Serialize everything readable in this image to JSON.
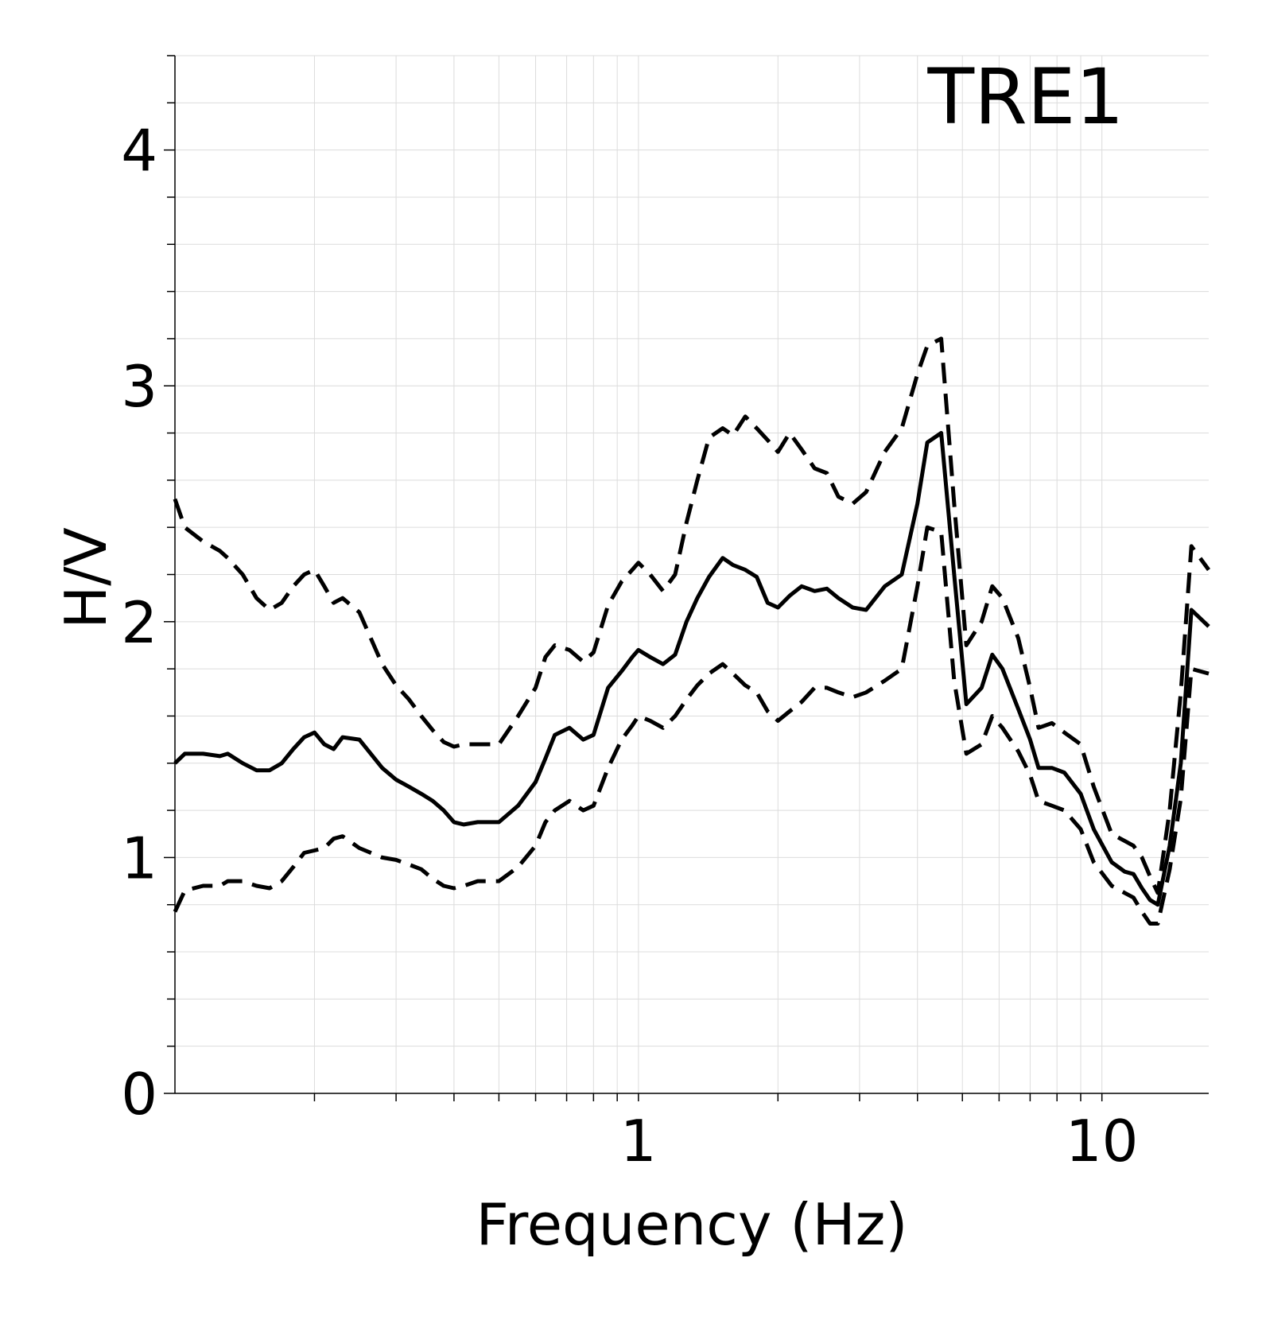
{
  "chart_data": {
    "type": "line",
    "title": "TRE1",
    "xlabel": "Frequency (Hz)",
    "ylabel": "H/V",
    "xscale": "log",
    "xlim": [
      0.1,
      17
    ],
    "ylim": [
      0,
      4.4
    ],
    "x_tick_labels": [
      "1",
      "10"
    ],
    "y_tick_labels": [
      "0",
      "1",
      "2",
      "3",
      "4"
    ],
    "grid": true,
    "series": [
      {
        "style": "solid",
        "color": "#000000",
        "x": [
          0.1,
          0.105,
          0.115,
          0.125,
          0.13,
          0.14,
          0.15,
          0.16,
          0.17,
          0.18,
          0.19,
          0.2,
          0.21,
          0.22,
          0.23,
          0.25,
          0.28,
          0.3,
          0.32,
          0.34,
          0.36,
          0.38,
          0.4,
          0.42,
          0.45,
          0.5,
          0.55,
          0.6,
          0.63,
          0.66,
          0.71,
          0.76,
          0.8,
          0.86,
          0.92,
          0.97,
          1.0,
          1.06,
          1.13,
          1.2,
          1.27,
          1.34,
          1.42,
          1.52,
          1.6,
          1.7,
          1.8,
          1.9,
          2.0,
          2.12,
          2.25,
          2.4,
          2.55,
          2.7,
          2.9,
          3.1,
          3.4,
          3.7,
          4.0,
          4.2,
          4.5,
          4.8,
          5.1,
          5.5,
          5.8,
          6.1,
          6.6,
          7.0,
          7.3,
          7.8,
          8.3,
          9.0,
          9.6,
          10.5,
          11.2,
          11.7,
          12.2,
          12.7,
          13.2,
          14.0,
          14.8,
          15.6,
          17.0
        ],
        "y": [
          1.4,
          1.44,
          1.44,
          1.43,
          1.44,
          1.4,
          1.37,
          1.37,
          1.4,
          1.46,
          1.51,
          1.53,
          1.48,
          1.46,
          1.51,
          1.5,
          1.38,
          1.33,
          1.3,
          1.27,
          1.24,
          1.2,
          1.15,
          1.14,
          1.15,
          1.15,
          1.22,
          1.32,
          1.42,
          1.52,
          1.55,
          1.5,
          1.52,
          1.72,
          1.79,
          1.85,
          1.88,
          1.85,
          1.82,
          1.86,
          2.0,
          2.1,
          2.19,
          2.27,
          2.24,
          2.22,
          2.19,
          2.08,
          2.06,
          2.11,
          2.15,
          2.13,
          2.14,
          2.1,
          2.06,
          2.05,
          2.15,
          2.2,
          2.5,
          2.76,
          2.8,
          2.2,
          1.65,
          1.72,
          1.86,
          1.8,
          1.63,
          1.5,
          1.38,
          1.38,
          1.36,
          1.27,
          1.12,
          0.98,
          0.94,
          0.93,
          0.87,
          0.82,
          0.8,
          1.05,
          1.4,
          2.05,
          1.98
        ]
      },
      {
        "style": "dashed",
        "color": "#000000",
        "x": [
          0.1,
          0.105,
          0.115,
          0.125,
          0.13,
          0.14,
          0.15,
          0.16,
          0.17,
          0.18,
          0.19,
          0.2,
          0.21,
          0.22,
          0.23,
          0.25,
          0.28,
          0.3,
          0.32,
          0.34,
          0.36,
          0.38,
          0.4,
          0.42,
          0.45,
          0.5,
          0.55,
          0.6,
          0.63,
          0.66,
          0.71,
          0.76,
          0.8,
          0.86,
          0.92,
          0.97,
          1.0,
          1.06,
          1.13,
          1.2,
          1.27,
          1.34,
          1.42,
          1.52,
          1.6,
          1.7,
          1.8,
          1.9,
          2.0,
          2.12,
          2.25,
          2.4,
          2.55,
          2.7,
          2.9,
          3.1,
          3.4,
          3.7,
          4.0,
          4.2,
          4.5,
          4.8,
          5.1,
          5.5,
          5.8,
          6.1,
          6.6,
          7.0,
          7.3,
          7.8,
          8.3,
          9.0,
          9.6,
          10.5,
          11.2,
          11.7,
          12.2,
          12.7,
          13.2,
          14.0,
          14.8,
          15.6,
          17.0
        ],
        "y": [
          2.52,
          2.4,
          2.34,
          2.3,
          2.27,
          2.2,
          2.1,
          2.05,
          2.08,
          2.15,
          2.2,
          2.22,
          2.15,
          2.08,
          2.1,
          2.04,
          1.82,
          1.73,
          1.67,
          1.6,
          1.54,
          1.49,
          1.47,
          1.48,
          1.48,
          1.48,
          1.6,
          1.72,
          1.85,
          1.9,
          1.88,
          1.83,
          1.87,
          2.07,
          2.17,
          2.22,
          2.25,
          2.2,
          2.13,
          2.2,
          2.42,
          2.6,
          2.78,
          2.82,
          2.79,
          2.87,
          2.82,
          2.77,
          2.72,
          2.8,
          2.73,
          2.65,
          2.63,
          2.53,
          2.5,
          2.55,
          2.72,
          2.82,
          3.05,
          3.17,
          3.2,
          2.5,
          1.9,
          2.0,
          2.15,
          2.1,
          1.93,
          1.72,
          1.55,
          1.57,
          1.53,
          1.48,
          1.3,
          1.1,
          1.07,
          1.05,
          1.0,
          0.92,
          0.85,
          1.2,
          1.7,
          2.32,
          2.22
        ]
      },
      {
        "style": "dashed",
        "color": "#000000",
        "x": [
          0.1,
          0.105,
          0.115,
          0.125,
          0.13,
          0.14,
          0.15,
          0.16,
          0.17,
          0.18,
          0.19,
          0.2,
          0.21,
          0.22,
          0.23,
          0.25,
          0.28,
          0.3,
          0.32,
          0.34,
          0.36,
          0.38,
          0.4,
          0.42,
          0.45,
          0.5,
          0.55,
          0.6,
          0.63,
          0.66,
          0.71,
          0.76,
          0.8,
          0.86,
          0.92,
          0.97,
          1.0,
          1.06,
          1.13,
          1.2,
          1.27,
          1.34,
          1.42,
          1.52,
          1.6,
          1.7,
          1.8,
          1.9,
          2.0,
          2.12,
          2.25,
          2.4,
          2.55,
          2.7,
          2.9,
          3.1,
          3.4,
          3.7,
          4.0,
          4.2,
          4.5,
          4.8,
          5.1,
          5.5,
          5.8,
          6.1,
          6.6,
          7.0,
          7.3,
          7.8,
          8.3,
          9.0,
          9.6,
          10.5,
          11.2,
          11.7,
          12.2,
          12.7,
          13.2,
          14.0,
          14.8,
          15.6,
          17.0
        ],
        "y": [
          0.77,
          0.86,
          0.88,
          0.88,
          0.9,
          0.9,
          0.88,
          0.87,
          0.9,
          0.96,
          1.02,
          1.03,
          1.04,
          1.08,
          1.09,
          1.04,
          1.0,
          0.99,
          0.97,
          0.95,
          0.91,
          0.88,
          0.87,
          0.88,
          0.9,
          0.9,
          0.96,
          1.05,
          1.15,
          1.2,
          1.24,
          1.2,
          1.22,
          1.38,
          1.5,
          1.56,
          1.6,
          1.58,
          1.55,
          1.6,
          1.67,
          1.73,
          1.78,
          1.82,
          1.78,
          1.73,
          1.7,
          1.62,
          1.58,
          1.62,
          1.66,
          1.72,
          1.72,
          1.7,
          1.68,
          1.7,
          1.75,
          1.8,
          2.15,
          2.4,
          2.38,
          1.75,
          1.44,
          1.48,
          1.6,
          1.55,
          1.45,
          1.35,
          1.24,
          1.22,
          1.2,
          1.12,
          0.98,
          0.88,
          0.85,
          0.83,
          0.77,
          0.72,
          0.72,
          0.95,
          1.25,
          1.8,
          1.78
        ]
      }
    ]
  }
}
